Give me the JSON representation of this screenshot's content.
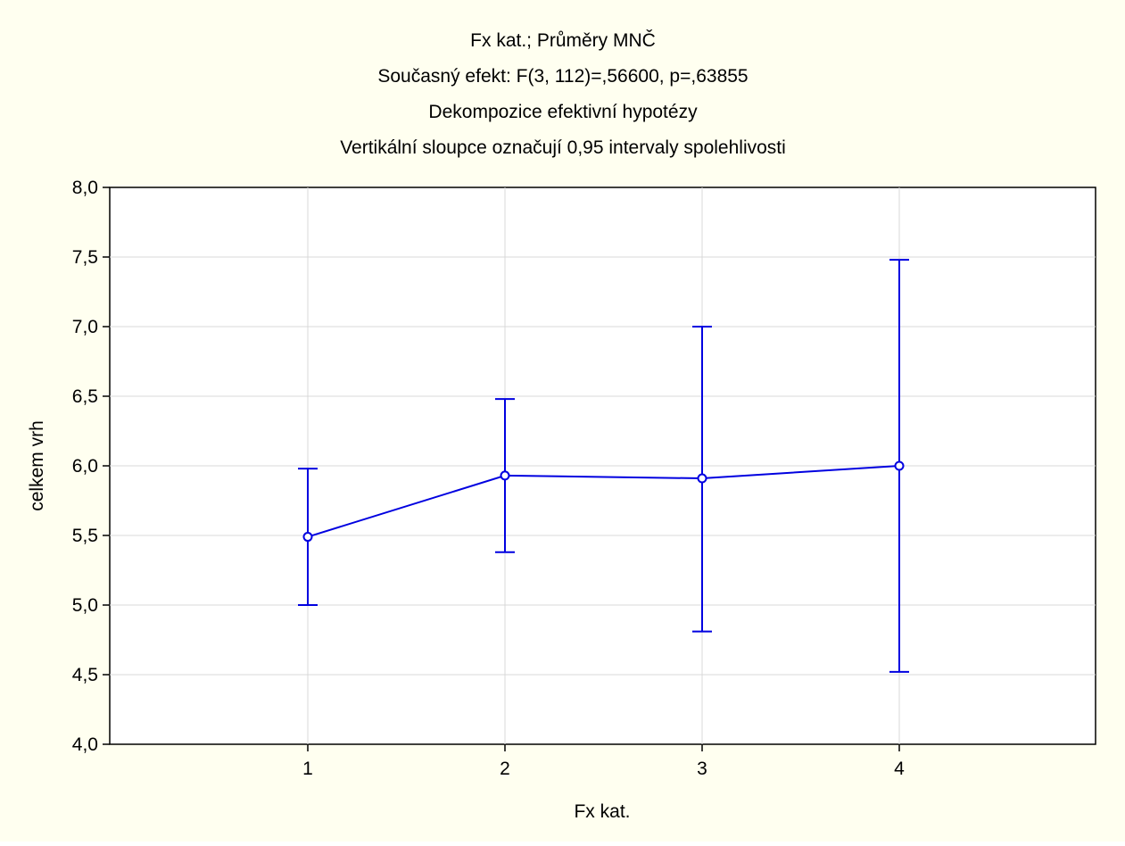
{
  "chart_data": {
    "type": "line",
    "title_lines": [
      "Fx kat.; Průměry MNČ",
      "Současný efekt: F(3, 112)=,56600, p=,63855",
      "Dekompozice efektivní hypotézy",
      "Vertikální sloupce označují 0,95 intervaly spolehlivosti"
    ],
    "xlabel": "Fx kat.",
    "ylabel": "celkem vrh",
    "categories": [
      "1",
      "2",
      "3",
      "4"
    ],
    "ylim": [
      4.0,
      8.0
    ],
    "yticks": [
      4.0,
      4.5,
      5.0,
      5.5,
      6.0,
      6.5,
      7.0,
      7.5,
      8.0
    ],
    "ytick_labels": [
      "4,0",
      "4,5",
      "5,0",
      "5,5",
      "6,0",
      "6,5",
      "7,0",
      "7,5",
      "8,0"
    ],
    "grid": true,
    "series": [
      {
        "values": [
          5.49,
          5.93,
          5.91,
          6.0
        ],
        "ci_lower": [
          5.0,
          5.38,
          4.81,
          4.52
        ],
        "ci_upper": [
          5.98,
          6.48,
          7.0,
          7.48
        ]
      }
    ],
    "colors": {
      "background": "#fffff0",
      "line": "#0000e0",
      "grid": "#d8d8d8",
      "axis": "#000000"
    }
  }
}
